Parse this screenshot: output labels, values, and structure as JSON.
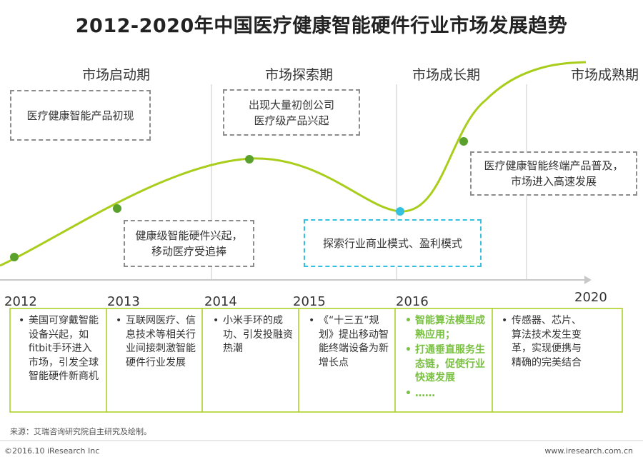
{
  "title": "2012-2020年中国医疗健康智能硬件行业市场发展趋势",
  "colors": {
    "curve": "#a8cd1b",
    "dot": "#5aa02c",
    "dot_highlight": "#35c0df",
    "timeline_box": "#a8cd1b",
    "highlight_text": "#7ac142"
  },
  "phases": [
    "市场启动期",
    "市场探索期",
    "市场成长期",
    "市场成熟期"
  ],
  "boxes": {
    "box1": [
      "医疗健康智能产品初现"
    ],
    "box2": [
      "出现大量初创公司",
      "医疗级产品兴起"
    ],
    "box3": [
      "健康级智能硬件兴起，",
      "移动医疗受追捧"
    ],
    "box4": [
      "探索行业商业模式、盈利模式"
    ],
    "box5": [
      "医疗健康智能终端产品普及，",
      "市场进入高速发展"
    ]
  },
  "years": [
    "2012",
    "2013",
    "2014",
    "2015",
    "2016",
    "2020"
  ],
  "columns": [
    {
      "items": [
        "美国可穿戴智能设备兴起，如fitbit手环进入市场，引发全球智能硬件新商机"
      ]
    },
    {
      "items": [
        "互联网医疗、信息技术等相关行业间接刺激智能硬件行业发展"
      ]
    },
    {
      "items": [
        "小米手环的成功、引发投融资热潮"
      ]
    },
    {
      "items": [
        "《“十三五”规划》提出移动智能终端设备为新增长点"
      ]
    },
    {
      "items": [
        "智能算法模型成熟应用；",
        "打通垂直服务生态链，促使行业快速发展",
        "……"
      ]
    },
    {
      "items": [
        "传感器、芯片、算法技术发生变革，实现便携与精确的完美结合"
      ]
    }
  ],
  "source": "来源：艾瑞咨询研究院自主研究及绘制。",
  "footer": {
    "copyright": "©2016.10 iResearch Inc",
    "website": "www.iresearch.com.cn"
  }
}
